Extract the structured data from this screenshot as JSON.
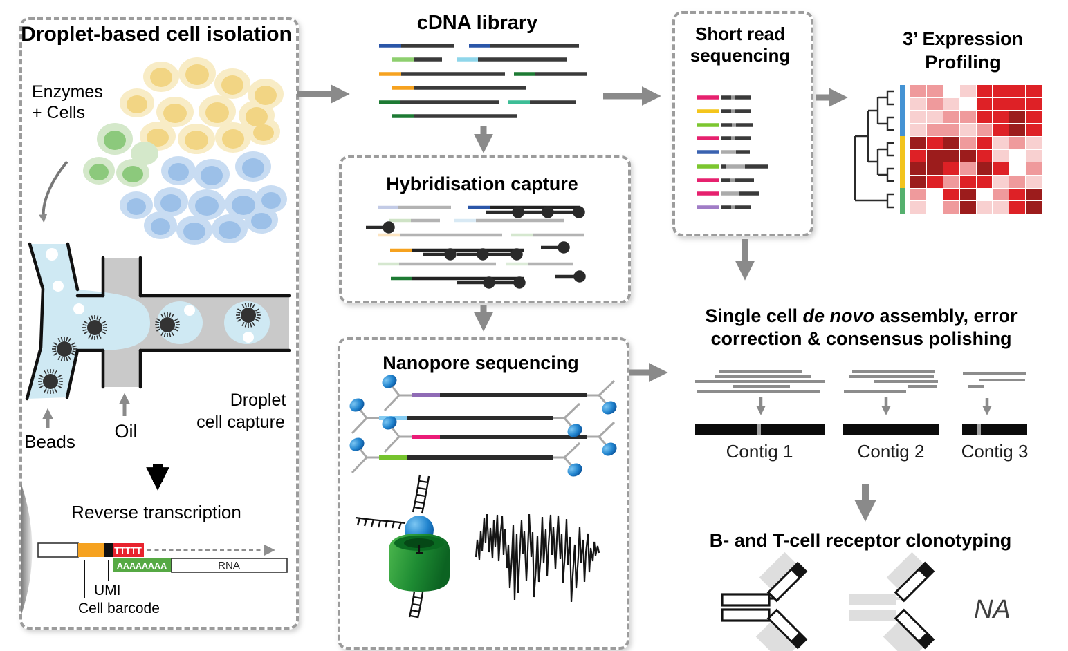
{
  "isolation": {
    "title": "Droplet-based cell isolation",
    "enzymes_line1": "Enzymes",
    "enzymes_line2": "+ Cells",
    "beads_label": "Beads",
    "oil_label": "Oil",
    "droplet_line1": "Droplet",
    "droplet_line2": "cell capture",
    "rt_label": "Reverse transcription",
    "polyT": "TTTTT",
    "polyA": "AAAAAAAA",
    "rna_label": "RNA",
    "umi_label": "UMI",
    "barcode_label": "Cell barcode"
  },
  "cdna": {
    "title": "cDNA library"
  },
  "hybridisation": {
    "title": "Hybridisation capture"
  },
  "nanopore": {
    "title": "Nanopore sequencing"
  },
  "short_read": {
    "title_line1": "Short read",
    "title_line2": "sequencing"
  },
  "profiling": {
    "title_line1": "3’ Expression",
    "title_line2": "Profiling",
    "heatmap": {
      "type": "heatmap",
      "rows": 10,
      "cols": 8,
      "palette": [
        "#ffffff",
        "#f8d0d0",
        "#ef9a9c",
        "#de2126",
        "#9c1c1c"
      ],
      "values": [
        [
          2,
          2,
          0,
          1,
          3,
          3,
          3,
          3
        ],
        [
          1,
          2,
          1,
          0,
          3,
          3,
          3,
          3
        ],
        [
          1,
          1,
          2,
          2,
          3,
          3,
          4,
          3
        ],
        [
          1,
          2,
          2,
          1,
          2,
          3,
          4,
          3
        ],
        [
          4,
          3,
          4,
          2,
          3,
          1,
          2,
          1
        ],
        [
          3,
          4,
          4,
          4,
          3,
          1,
          0,
          1
        ],
        [
          4,
          4,
          3,
          2,
          4,
          3,
          0,
          2
        ],
        [
          4,
          3,
          2,
          3,
          3,
          1,
          2,
          1
        ],
        [
          2,
          0,
          3,
          4,
          0,
          2,
          3,
          4
        ],
        [
          1,
          0,
          2,
          4,
          1,
          1,
          3,
          4
        ]
      ],
      "row_groups": [
        {
          "color": "#4493d4",
          "rows": 4
        },
        {
          "color": "#f2c41d",
          "rows": 4
        },
        {
          "color": "#55b06e",
          "rows": 2
        }
      ]
    }
  },
  "assembly": {
    "line1_pre": "Single cell ",
    "line1_italic": "de novo",
    "line1_post": " assembly, error",
    "line2": "correction & consensus polishing",
    "contig_labels": [
      "Contig 1",
      "Contig 2",
      "Contig 3"
    ]
  },
  "clonotyping": {
    "heading": "B- and T-cell receptor clonotyping",
    "na_label": "NA"
  },
  "colors": {
    "arrow_gray": "#8a8a8a",
    "box_border": "#9c9c9c",
    "fluid_blue": "#cfe9f3",
    "channel_gray": "#c9c9c9",
    "cell_yellow_outer": "#f8ecc6",
    "cell_yellow_inner": "#f2d584",
    "cell_green_outer": "#d4e8ca",
    "cell_green_inner": "#8cc97c",
    "cell_blue_outer": "#c8dcf2",
    "cell_blue_inner": "#9cc0e8",
    "barcode_orange": "#f6a21f",
    "umi_black": "#111111",
    "polyT_red": "#e8232e",
    "polyA_green": "#56a944",
    "tip_blue": "#2b56a8",
    "tip_light_green": "#8ecf6f",
    "tip_cyan": "#8fd6ea",
    "tip_orange": "#f6a21f",
    "tip_dark_green": "#1d7a33",
    "tip_teal": "#3dbd96",
    "read_pink": "#e6216e",
    "read_yellow": "#f4c51c",
    "read_green": "#7cc62f",
    "read_blue": "#3a62b0",
    "read_purple": "#a07cc6",
    "nano_purple": "#8f6bb5",
    "nano_lightblue": "#85ccf2",
    "nano_pink": "#ea1c77",
    "nano_green": "#76c32e",
    "nano_protein_blue": "#1268b4",
    "pore_green": "#1e8c33"
  }
}
